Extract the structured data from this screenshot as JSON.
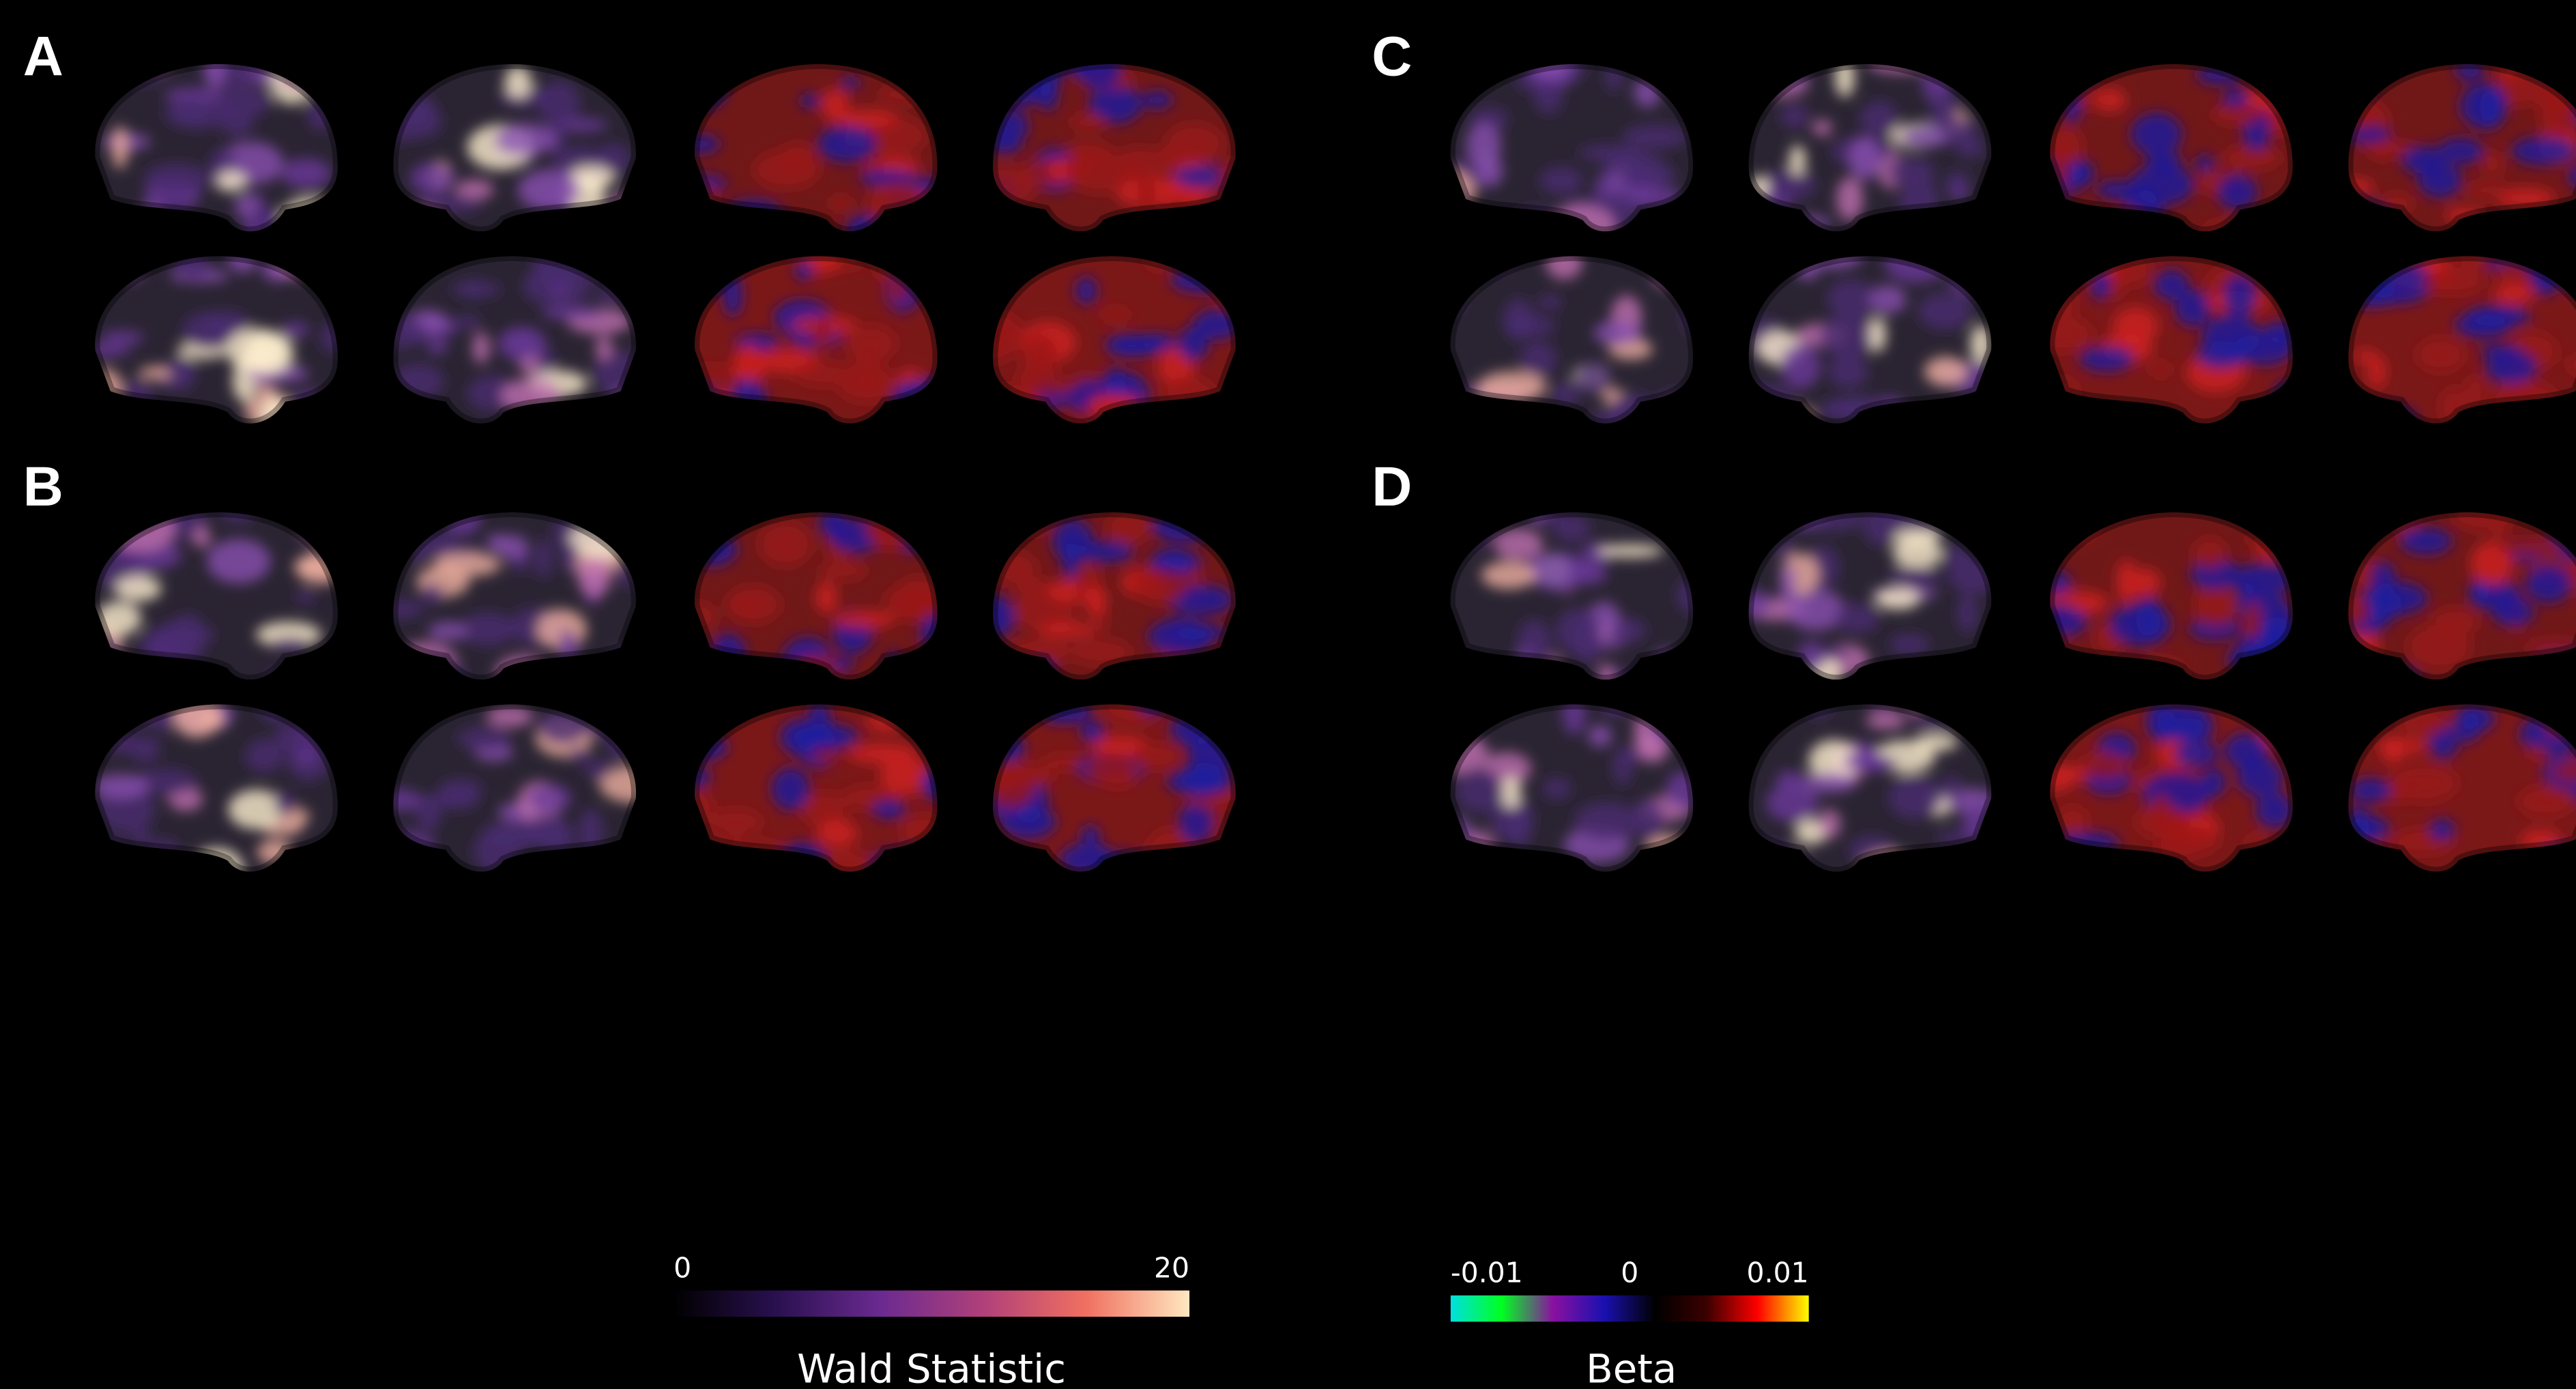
{
  "panels": [
    {
      "label": "A"
    },
    {
      "label": "B"
    },
    {
      "label": "C"
    },
    {
      "label": "D"
    }
  ],
  "colorbars": [
    {
      "title": "Wald Statistic",
      "range": [
        0,
        20
      ],
      "ticks": [
        0,
        20
      ],
      "colors": [
        "#000000",
        "#2a1050",
        "#6a2a90",
        "#b0407a",
        "#f07060",
        "#ffe8c0"
      ]
    },
    {
      "title": "Beta",
      "range": [
        -0.01,
        0.01
      ],
      "ticks": [
        -0.01,
        0,
        0.01
      ],
      "colors": [
        "#00e0e0",
        "#00ff20",
        "#8a10a0",
        "#1a10b0",
        "#000000",
        "#3a0000",
        "#ff0000",
        "#ffff00"
      ]
    }
  ]
}
